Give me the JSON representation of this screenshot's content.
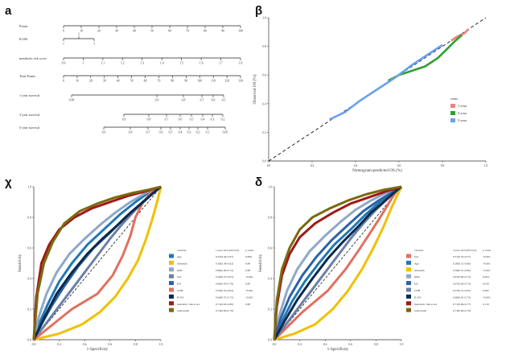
{
  "panels": {
    "a": "a",
    "b": "β",
    "c": "χ",
    "d": "δ"
  },
  "chart_data": [
    {
      "panel": "a",
      "type": "table",
      "kind": "nomogram",
      "rows": [
        {
          "label": "Points",
          "ticks": [
            "0",
            "10",
            "20",
            "30",
            "40",
            "50",
            "60",
            "70",
            "80",
            "90",
            "100"
          ]
        },
        {
          "label": "R-ISS",
          "ticks": [
            "1",
            "2",
            "3"
          ]
        },
        {
          "label": "metabolic risk score",
          "ticks": [
            "0.9",
            "1",
            "1.1",
            "1.2",
            "1.3",
            "1.4",
            "1.5",
            "1.6",
            "1.7",
            "1.8"
          ]
        },
        {
          "label": "Total Points",
          "ticks": [
            "0",
            "10",
            "20",
            "30",
            "40",
            "50",
            "60",
            "70",
            "80",
            "90",
            "100",
            "110",
            "120",
            "130"
          ]
        },
        {
          "label": "1-year survival",
          "ticks": [
            "0.99",
            "0.9",
            "0.8",
            "0.7",
            "0.6",
            "0.5"
          ]
        },
        {
          "label": "3-year survival",
          "ticks": [
            "0.9",
            "0.8",
            "0.7",
            "0.6",
            "0.5",
            "0.4",
            "0.3",
            "0.2"
          ]
        },
        {
          "label": "5-year survival",
          "ticks": [
            "0.9",
            "0.8",
            "0.7",
            "0.6",
            "0.5",
            "0.4",
            "0.3",
            "0.2",
            "0.1",
            "0.05"
          ]
        }
      ]
    },
    {
      "panel": "b",
      "type": "line",
      "kind": "calibration",
      "xlabel": "Nomogram-predicted OS (%)",
      "ylabel": "Observed OS (%)",
      "xlim": [
        0,
        1
      ],
      "ylim": [
        0,
        1
      ],
      "xticks": [
        "0.0",
        "0.2",
        "0.4",
        "0.6",
        "0.8",
        "1.0"
      ],
      "yticks": [
        "0.0",
        "0.2",
        "0.4",
        "0.6",
        "0.8",
        "1.0"
      ],
      "legend_title": "years",
      "legend_position": "right",
      "series": [
        {
          "name": "1-year",
          "color": "#f08080",
          "x": [
            0.84,
            0.87,
            0.9,
            0.92
          ],
          "y": [
            0.84,
            0.87,
            0.89,
            0.92
          ]
        },
        {
          "name": "3-year",
          "color": "#2ea02e",
          "x": [
            0.55,
            0.6,
            0.66,
            0.72,
            0.78,
            0.82,
            0.86,
            0.89
          ],
          "y": [
            0.56,
            0.6,
            0.63,
            0.66,
            0.72,
            0.78,
            0.84,
            0.88
          ]
        },
        {
          "name": "5-year",
          "color": "#6aa0f0",
          "x": [
            0.28,
            0.35,
            0.42,
            0.5,
            0.58,
            0.66,
            0.74,
            0.8
          ],
          "y": [
            0.29,
            0.34,
            0.42,
            0.5,
            0.58,
            0.67,
            0.75,
            0.81
          ]
        }
      ]
    },
    {
      "panel": "c",
      "type": "line",
      "kind": "roc",
      "xlabel": "1-Specificity",
      "ylabel": "Sensitivity",
      "xlim": [
        0,
        1
      ],
      "ylim": [
        0,
        1
      ],
      "xticks": [
        "0.0",
        "0.2",
        "0.4",
        "0.6",
        "0.8",
        "1.0"
      ],
      "yticks": [
        "0.0",
        "0.2",
        "0.4",
        "0.6",
        "0.8",
        "1.0"
      ],
      "table_headers": [
        "variable",
        "1-year AUC(95%CI)",
        "p value"
      ],
      "table_rows": [
        [
          "Age",
          "0.61(0.49-0.67)",
          "0.008"
        ],
        [
          "Albumin",
          "0.56(0.38-0.62)",
          "0.88"
        ],
        [
          "β2M",
          "0.60(0.49-0.72)",
          "0.08"
        ],
        [
          "Sex",
          "0.56(0.37-0.63)",
          "<0.001"
        ],
        [
          "ISS",
          "0.60(0.50-0.70)",
          "0.09"
        ],
        [
          "LDH",
          "0.53(0.43-0.64)",
          "<0.001"
        ],
        [
          "R-ISS",
          "0.64(0.55-0.72)",
          "<0.001"
        ],
        [
          "metabolic risk score",
          "0.71(0.63-0.80)",
          "0.08"
        ],
        [
          "nomogram",
          "0.74(0.66-0.79)",
          ""
        ]
      ],
      "series": [
        {
          "name": "Age",
          "color": "#1f78b4",
          "x": [
            0,
            0.05,
            0.12,
            0.2,
            0.3,
            0.42,
            0.55,
            0.68,
            0.8,
            0.9,
            1
          ],
          "y": [
            0,
            0.12,
            0.25,
            0.38,
            0.5,
            0.62,
            0.72,
            0.82,
            0.9,
            0.96,
            1
          ]
        },
        {
          "name": "Albumin",
          "color": "#f0c000",
          "x": [
            0,
            0.2,
            0.38,
            0.52,
            0.64,
            0.74,
            0.82,
            0.88,
            0.93,
            0.97,
            1
          ],
          "y": [
            0,
            0.04,
            0.1,
            0.18,
            0.28,
            0.4,
            0.52,
            0.65,
            0.78,
            0.9,
            1
          ]
        },
        {
          "name": "β2M",
          "color": "#8fa8c8",
          "x": [
            0,
            0.04,
            0.1,
            0.18,
            0.28,
            0.4,
            0.52,
            0.64,
            0.76,
            0.88,
            1
          ],
          "y": [
            0,
            0.15,
            0.3,
            0.44,
            0.56,
            0.66,
            0.75,
            0.83,
            0.9,
            0.96,
            1
          ]
        },
        {
          "name": "Sex",
          "color": "#6b7fa8",
          "x": [
            0,
            0.1,
            0.2,
            0.3,
            0.4,
            0.5,
            0.6,
            0.7,
            0.8,
            0.9,
            1
          ],
          "y": [
            0,
            0.11,
            0.22,
            0.33,
            0.44,
            0.55,
            0.66,
            0.76,
            0.85,
            0.93,
            1
          ]
        },
        {
          "name": "ISS",
          "color": "#2b63a8",
          "x": [
            0,
            0.06,
            0.14,
            0.24,
            0.35,
            0.47,
            0.6,
            0.72,
            0.83,
            0.92,
            1
          ],
          "y": [
            0,
            0.1,
            0.22,
            0.35,
            0.48,
            0.6,
            0.7,
            0.8,
            0.88,
            0.95,
            1
          ]
        },
        {
          "name": "LDH",
          "color": "#e07060",
          "x": [
            0,
            0.3,
            0.5,
            0.62,
            0.7,
            0.76,
            0.8,
            0.86,
            0.92,
            0.97,
            1
          ],
          "y": [
            0,
            0.2,
            0.3,
            0.42,
            0.55,
            0.68,
            0.8,
            0.9,
            0.96,
            0.99,
            1
          ]
        },
        {
          "name": "R-ISS",
          "color": "#0b2a4a",
          "x": [
            0,
            0.08,
            0.18,
            0.3,
            0.42,
            0.54,
            0.66,
            0.76,
            0.86,
            0.94,
            1
          ],
          "y": [
            0,
            0.14,
            0.3,
            0.44,
            0.56,
            0.66,
            0.75,
            0.83,
            0.9,
            0.96,
            1
          ]
        },
        {
          "name": "metabolic risk score",
          "color": "#a01818",
          "x": [
            0,
            0.02,
            0.06,
            0.12,
            0.2,
            0.32,
            0.46,
            0.6,
            0.74,
            0.88,
            1
          ],
          "y": [
            0,
            0.28,
            0.5,
            0.62,
            0.72,
            0.8,
            0.86,
            0.9,
            0.94,
            0.97,
            1
          ]
        },
        {
          "name": "nomogram",
          "color": "#7a6a10",
          "x": [
            0,
            0.03,
            0.08,
            0.15,
            0.24,
            0.36,
            0.5,
            0.64,
            0.78,
            0.9,
            1
          ],
          "y": [
            0,
            0.3,
            0.5,
            0.64,
            0.76,
            0.84,
            0.89,
            0.93,
            0.96,
            0.98,
            1
          ]
        }
      ]
    },
    {
      "panel": "d",
      "type": "line",
      "kind": "roc",
      "xlabel": "1-Specificity",
      "ylabel": "Sensitivity",
      "xlim": [
        0,
        1
      ],
      "ylim": [
        0,
        1
      ],
      "xticks": [
        "0.0",
        "0.2",
        "0.4",
        "0.6",
        "0.8",
        "1.0"
      ],
      "yticks": [
        "0.0",
        "0.2",
        "0.4",
        "0.6",
        "0.8",
        "1.0"
      ],
      "table_headers": [
        "variable",
        "3-year AUC(95%CI)",
        "p value"
      ],
      "table_rows": [
        [
          "Sex",
          "0.57(0.50-0.57)",
          "<0.001"
        ],
        [
          "Age",
          "0.59(0.51-0.66)",
          "<0.001"
        ],
        [
          "Albumin",
          "0.58(0.51-0.66)",
          "<0.001"
        ],
        [
          "β2M",
          "0.67(0.60-0.73)",
          "0.004"
        ],
        [
          "ISS",
          "0.67(0.60-0.73)",
          "0.019"
        ],
        [
          "LDH",
          "0.57(0.51-0.65)",
          "0.095"
        ],
        [
          "R-ISS",
          "0.66(0.61-0.73)",
          "<0.001"
        ],
        [
          "metabolic risk score",
          "0.71(0.66-0.77)",
          "0.119"
        ],
        [
          "nomogram",
          "0.73(0.69-0.79)",
          ""
        ]
      ],
      "series": [
        {
          "name": "Sex",
          "color": "#e07060",
          "x": [
            0,
            0.22,
            0.42,
            0.56,
            0.66,
            0.74,
            0.81,
            0.87,
            0.92,
            0.96,
            1
          ],
          "y": [
            0,
            0.18,
            0.32,
            0.46,
            0.58,
            0.68,
            0.77,
            0.85,
            0.92,
            0.97,
            1
          ]
        },
        {
          "name": "Age",
          "color": "#1f78b4",
          "x": [
            0,
            0.06,
            0.14,
            0.24,
            0.35,
            0.47,
            0.6,
            0.72,
            0.83,
            0.92,
            1
          ],
          "y": [
            0,
            0.12,
            0.25,
            0.38,
            0.5,
            0.62,
            0.72,
            0.82,
            0.9,
            0.96,
            1
          ]
        },
        {
          "name": "Albumin",
          "color": "#f0c000",
          "x": [
            0,
            0.16,
            0.32,
            0.46,
            0.58,
            0.69,
            0.78,
            0.86,
            0.92,
            0.97,
            1
          ],
          "y": [
            0,
            0.04,
            0.1,
            0.2,
            0.32,
            0.46,
            0.6,
            0.74,
            0.86,
            0.95,
            1
          ]
        },
        {
          "name": "β2M",
          "color": "#8fa8c8",
          "x": [
            0,
            0.04,
            0.1,
            0.18,
            0.28,
            0.4,
            0.52,
            0.64,
            0.76,
            0.88,
            1
          ],
          "y": [
            0,
            0.16,
            0.32,
            0.46,
            0.58,
            0.68,
            0.77,
            0.85,
            0.91,
            0.96,
            1
          ]
        },
        {
          "name": "ISS",
          "color": "#2b63a8",
          "x": [
            0,
            0.05,
            0.12,
            0.22,
            0.33,
            0.45,
            0.58,
            0.7,
            0.82,
            0.92,
            1
          ],
          "y": [
            0,
            0.14,
            0.28,
            0.42,
            0.54,
            0.65,
            0.75,
            0.84,
            0.91,
            0.96,
            1
          ]
        },
        {
          "name": "LDH",
          "color": "#6b7fa8",
          "x": [
            0,
            0.1,
            0.2,
            0.3,
            0.4,
            0.5,
            0.6,
            0.7,
            0.8,
            0.9,
            1
          ],
          "y": [
            0,
            0.11,
            0.22,
            0.33,
            0.44,
            0.55,
            0.66,
            0.76,
            0.85,
            0.93,
            1
          ]
        },
        {
          "name": "R-ISS",
          "color": "#0b2a4a",
          "x": [
            0,
            0.08,
            0.18,
            0.3,
            0.42,
            0.54,
            0.66,
            0.76,
            0.86,
            0.94,
            1
          ],
          "y": [
            0,
            0.12,
            0.26,
            0.4,
            0.53,
            0.64,
            0.74,
            0.83,
            0.9,
            0.96,
            1
          ]
        },
        {
          "name": "metabolic risk score",
          "color": "#a01818",
          "x": [
            0,
            0.02,
            0.06,
            0.12,
            0.2,
            0.32,
            0.46,
            0.6,
            0.74,
            0.88,
            1
          ],
          "y": [
            0,
            0.22,
            0.42,
            0.56,
            0.67,
            0.76,
            0.83,
            0.89,
            0.93,
            0.97,
            1
          ]
        },
        {
          "name": "nomogram",
          "color": "#7a6a10",
          "x": [
            0,
            0.02,
            0.06,
            0.12,
            0.2,
            0.3,
            0.44,
            0.58,
            0.72,
            0.86,
            1
          ],
          "y": [
            0,
            0.26,
            0.46,
            0.6,
            0.72,
            0.8,
            0.86,
            0.91,
            0.95,
            0.98,
            1
          ]
        }
      ]
    }
  ]
}
